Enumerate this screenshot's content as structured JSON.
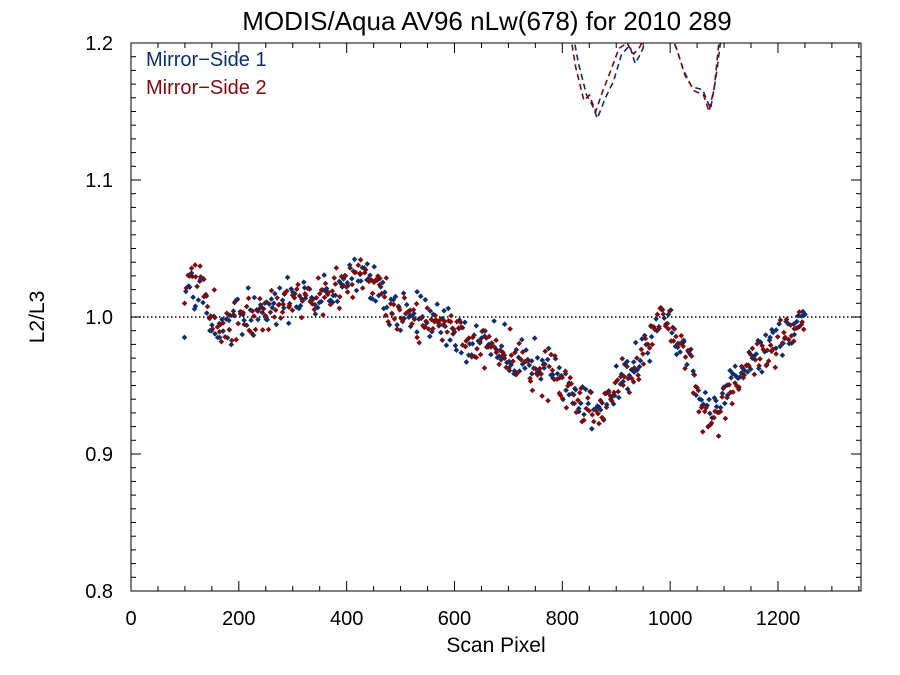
{
  "chart_data": {
    "type": "scatter",
    "title": "MODIS/Aqua AV96 nLw(678) for 2010 289",
    "xlabel": "Scan Pixel",
    "ylabel": "L2/L3",
    "xlim": [
      0,
      1354
    ],
    "ylim": [
      0.8,
      1.2
    ],
    "x_ticks": [
      0,
      200,
      400,
      600,
      800,
      1000,
      1200
    ],
    "x_tick_labels": [
      "0",
      "200",
      "400",
      "600",
      "800",
      "1000",
      "1200"
    ],
    "y_ticks": [
      0.8,
      0.9,
      1.0,
      1.1,
      1.2
    ],
    "y_tick_labels": [
      "0.8",
      "0.9",
      "1.0",
      "1.1",
      "1.2"
    ],
    "reference_line": 1.0,
    "legend_position": "top-left",
    "series": [
      {
        "name": "Mirror−Side 1",
        "color": "#0b2f6b",
        "trend": [
          [
            100,
            1.03
          ],
          [
            110,
            1.028
          ],
          [
            120,
            1.025
          ],
          [
            130,
            1.02
          ],
          [
            140,
            1.012
          ],
          [
            150,
            0.998
          ],
          [
            160,
            0.99
          ],
          [
            170,
            0.986
          ],
          [
            180,
            0.99
          ],
          [
            190,
            0.995
          ],
          [
            200,
            1.0
          ],
          [
            220,
            1.002
          ],
          [
            240,
            1.003
          ],
          [
            260,
            1.005
          ],
          [
            280,
            1.008
          ],
          [
            300,
            1.015
          ],
          [
            320,
            1.016
          ],
          [
            340,
            1.013
          ],
          [
            360,
            1.012
          ],
          [
            380,
            1.018
          ],
          [
            400,
            1.025
          ],
          [
            420,
            1.03
          ],
          [
            430,
            1.033
          ],
          [
            440,
            1.03
          ],
          [
            460,
            1.02
          ],
          [
            480,
            1.008
          ],
          [
            500,
            1.003
          ],
          [
            520,
            1.002
          ],
          [
            540,
            1.0
          ],
          [
            560,
            0.998
          ],
          [
            580,
            0.995
          ],
          [
            600,
            0.99
          ],
          [
            620,
            0.985
          ],
          [
            640,
            0.982
          ],
          [
            660,
            0.98
          ],
          [
            680,
            0.978
          ],
          [
            700,
            0.974
          ],
          [
            720,
            0.97
          ],
          [
            740,
            0.966
          ],
          [
            760,
            0.962
          ],
          [
            780,
            0.958
          ],
          [
            800,
            0.952
          ],
          [
            820,
            0.945
          ],
          [
            840,
            0.938
          ],
          [
            860,
            0.935
          ],
          [
            880,
            0.94
          ],
          [
            900,
            0.948
          ],
          [
            920,
            0.958
          ],
          [
            940,
            0.968
          ],
          [
            960,
            0.98
          ],
          [
            980,
            0.998
          ],
          [
            990,
            1.005
          ],
          [
            1000,
            0.995
          ],
          [
            1010,
            0.985
          ],
          [
            1020,
            0.978
          ],
          [
            1040,
            0.965
          ],
          [
            1060,
            0.935
          ],
          [
            1070,
            0.925
          ],
          [
            1080,
            0.922
          ],
          [
            1090,
            0.93
          ],
          [
            1100,
            0.945
          ],
          [
            1120,
            0.955
          ],
          [
            1140,
            0.965
          ],
          [
            1160,
            0.972
          ],
          [
            1180,
            0.978
          ],
          [
            1200,
            0.982
          ],
          [
            1220,
            0.988
          ],
          [
            1240,
            0.995
          ],
          [
            1250,
            1.0
          ]
        ],
        "dashed_line": [
          [
            820,
            1.206
          ],
          [
            830,
            1.185
          ],
          [
            845,
            1.162
          ],
          [
            855,
            1.155
          ],
          [
            865,
            1.145
          ],
          [
            880,
            1.16
          ],
          [
            895,
            1.172
          ],
          [
            910,
            1.192
          ],
          [
            925,
            1.198
          ],
          [
            935,
            1.185
          ],
          [
            945,
            1.192
          ],
          [
            960,
            1.206
          ],
          [
            985,
            1.206
          ],
          [
            1000,
            1.206
          ],
          [
            1010,
            1.198
          ],
          [
            1025,
            1.18
          ],
          [
            1040,
            1.168
          ],
          [
            1060,
            1.166
          ],
          [
            1075,
            1.152
          ],
          [
            1085,
            1.175
          ],
          [
            1095,
            1.206
          ]
        ]
      },
      {
        "name": "Mirror−Side 2",
        "color": "#7a0c10",
        "trend": [
          [
            100,
            1.025
          ],
          [
            110,
            1.026
          ],
          [
            120,
            1.028
          ],
          [
            130,
            1.022
          ],
          [
            140,
            1.01
          ],
          [
            150,
            1.0
          ],
          [
            160,
            0.994
          ],
          [
            170,
            0.988
          ],
          [
            180,
            0.992
          ],
          [
            190,
            0.998
          ],
          [
            200,
            1.002
          ],
          [
            220,
            1.003
          ],
          [
            240,
            1.004
          ],
          [
            260,
            1.006
          ],
          [
            280,
            1.009
          ],
          [
            300,
            1.014
          ],
          [
            320,
            1.015
          ],
          [
            340,
            1.012
          ],
          [
            360,
            1.013
          ],
          [
            380,
            1.019
          ],
          [
            400,
            1.024
          ],
          [
            420,
            1.029
          ],
          [
            430,
            1.032
          ],
          [
            440,
            1.029
          ],
          [
            460,
            1.021
          ],
          [
            480,
            1.007
          ],
          [
            500,
            1.004
          ],
          [
            520,
            1.001
          ],
          [
            540,
            0.999
          ],
          [
            560,
            0.997
          ],
          [
            580,
            0.994
          ],
          [
            600,
            0.991
          ],
          [
            620,
            0.986
          ],
          [
            640,
            0.981
          ],
          [
            660,
            0.979
          ],
          [
            680,
            0.977
          ],
          [
            700,
            0.973
          ],
          [
            720,
            0.969
          ],
          [
            740,
            0.965
          ],
          [
            760,
            0.961
          ],
          [
            780,
            0.957
          ],
          [
            800,
            0.95
          ],
          [
            820,
            0.942
          ],
          [
            840,
            0.936
          ],
          [
            860,
            0.932
          ],
          [
            880,
            0.938
          ],
          [
            900,
            0.946
          ],
          [
            920,
            0.956
          ],
          [
            940,
            0.966
          ],
          [
            960,
            0.978
          ],
          [
            980,
            0.996
          ],
          [
            990,
            1.002
          ],
          [
            1000,
            0.992
          ],
          [
            1010,
            0.983
          ],
          [
            1020,
            0.976
          ],
          [
            1040,
            0.963
          ],
          [
            1060,
            0.932
          ],
          [
            1070,
            0.922
          ],
          [
            1080,
            0.92
          ],
          [
            1090,
            0.928
          ],
          [
            1100,
            0.943
          ],
          [
            1120,
            0.953
          ],
          [
            1140,
            0.963
          ],
          [
            1160,
            0.97
          ],
          [
            1180,
            0.976
          ],
          [
            1200,
            0.98
          ],
          [
            1220,
            0.986
          ],
          [
            1240,
            0.996
          ],
          [
            1250,
            1.002
          ]
        ],
        "dashed_line": [
          [
            815,
            1.206
          ],
          [
            825,
            1.182
          ],
          [
            840,
            1.158
          ],
          [
            850,
            1.162
          ],
          [
            862,
            1.15
          ],
          [
            875,
            1.165
          ],
          [
            890,
            1.18
          ],
          [
            905,
            1.196
          ],
          [
            920,
            1.2
          ],
          [
            932,
            1.192
          ],
          [
            942,
            1.196
          ],
          [
            955,
            1.206
          ],
          [
            985,
            1.206
          ],
          [
            1000,
            1.206
          ],
          [
            1012,
            1.196
          ],
          [
            1028,
            1.176
          ],
          [
            1045,
            1.165
          ],
          [
            1062,
            1.162
          ],
          [
            1072,
            1.15
          ],
          [
            1082,
            1.168
          ],
          [
            1092,
            1.206
          ]
        ]
      }
    ],
    "scatter_step": 3,
    "scatter_spread": 0.008
  }
}
